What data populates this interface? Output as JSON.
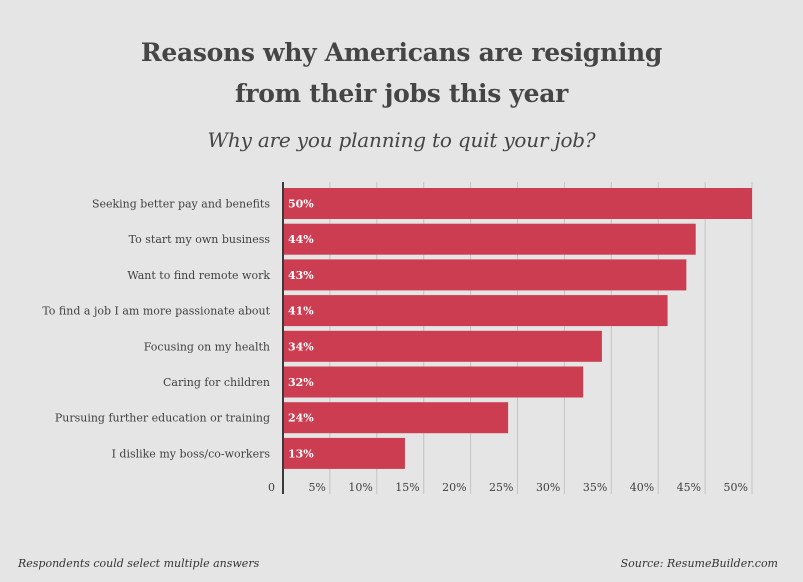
{
  "title_line1": "Reasons why Americans are resigning",
  "title_line2": "from their jobs this year",
  "subtitle": "Why are you planning to quit your job?",
  "footer_note": "Respondents could select multiple answers",
  "footer_source": "Source: ResumeBuilder.com",
  "colors": {
    "bar": "#cc3d52",
    "grid": "#c4c4c4",
    "axis": "#3a3a3a",
    "bar_label": "#ffffff",
    "text": "#404040",
    "background": "#e5e5e5"
  },
  "chart_data": {
    "type": "bar",
    "orientation": "horizontal",
    "title": "Reasons why Americans are resigning from their jobs this year",
    "subtitle": "Why are you planning to quit your job?",
    "categories": [
      "Seeking better pay and benefits",
      "To start my own business",
      "Want to find remote work",
      "To find a job I am more passionate about",
      "Focusing on my health",
      "Caring for children",
      "Pursuing further education or training",
      "I dislike my boss/co-workers"
    ],
    "values": [
      50,
      44,
      43,
      41,
      34,
      32,
      24,
      13
    ],
    "value_labels": [
      "50%",
      "44%",
      "43%",
      "41%",
      "34%",
      "32%",
      "24%",
      "13%"
    ],
    "xlim": [
      0,
      50
    ],
    "xticks": [
      0,
      5,
      10,
      15,
      20,
      25,
      30,
      35,
      40,
      45,
      50
    ],
    "xtick_labels": [
      "0",
      "5%",
      "10%",
      "15%",
      "20%",
      "25%",
      "30%",
      "35%",
      "40%",
      "45%",
      "50%"
    ],
    "xlabel": "",
    "ylabel": "",
    "grid": true,
    "legend": "none"
  }
}
